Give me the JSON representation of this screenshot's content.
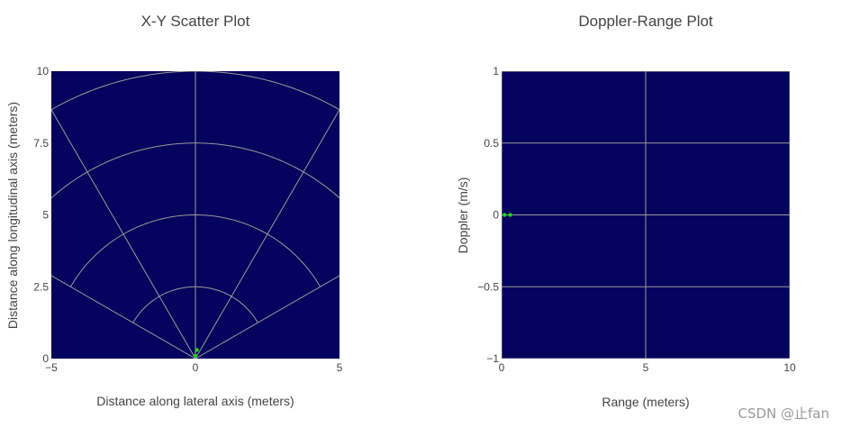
{
  "watermark": "CSDN @止fan",
  "chart_data": [
    {
      "type": "scatter",
      "title": "X-Y Scatter Plot",
      "xlabel": "Distance along lateral axis (meters)",
      "ylabel": "Distance along longitudinal axis (meters)",
      "xlim": [
        -5,
        5
      ],
      "ylim": [
        0,
        10
      ],
      "xticks": [
        -5,
        0,
        5
      ],
      "xtick_labels": [
        "−5",
        "0",
        "5"
      ],
      "yticks": [
        0,
        2.5,
        5,
        7.5,
        10
      ],
      "ytick_labels": [
        "0",
        "2.5",
        "5",
        "7.5",
        "10"
      ],
      "background_color": "#04045e",
      "grid_color": "#9a9a9a",
      "polar_grid": {
        "ranges": [
          2.5,
          5,
          7.5,
          10
        ],
        "angles_deg": [
          -60,
          -30,
          0,
          30,
          60
        ]
      },
      "marker_color": "#22d11c",
      "points": [
        {
          "x": 0.05,
          "y": 0.3
        },
        {
          "x": 0.0,
          "y": 0.1
        }
      ]
    },
    {
      "type": "scatter",
      "title": "Doppler-Range Plot",
      "xlabel": "Range (meters)",
      "ylabel": "Doppler (m/s)",
      "xlim": [
        0,
        10
      ],
      "ylim": [
        -1,
        1
      ],
      "xticks": [
        0,
        5,
        10
      ],
      "xtick_labels": [
        "0",
        "5",
        "10"
      ],
      "yticks": [
        -1,
        -0.5,
        0,
        0.5,
        1
      ],
      "ytick_labels": [
        "−1",
        "−0.5",
        "0",
        "0.5",
        "1"
      ],
      "background_color": "#04045e",
      "grid_color": "#9a9a9a",
      "marker_color": "#22d11c",
      "points": [
        {
          "x": 0.1,
          "y": 0
        },
        {
          "x": 0.3,
          "y": 0
        }
      ]
    }
  ]
}
